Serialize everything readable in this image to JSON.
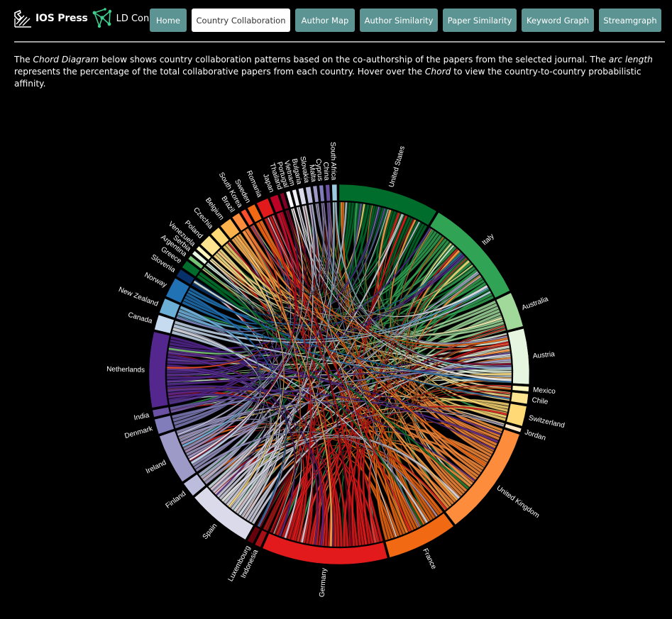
{
  "brand": {
    "ios_press": "IOS Press",
    "ld_connect": "LD Connect"
  },
  "nav": [
    {
      "label": "Home",
      "active": false,
      "width": 52
    },
    {
      "label": "Country Collaboration",
      "active": true,
      "width": 139
    },
    {
      "label": "Author Map",
      "active": false,
      "width": 84
    },
    {
      "label": "Author Similarity",
      "active": false,
      "width": 110
    },
    {
      "label": "Paper Similarity",
      "active": false,
      "width": 104
    },
    {
      "label": "Keyword Graph",
      "active": false,
      "width": 102
    },
    {
      "label": "Streamgraph",
      "active": false,
      "width": 88
    }
  ],
  "description": {
    "p1": "The ",
    "chord_diagram": "Chord Diagram",
    "p2": " below shows country collaboration patterns based on the co-authorship of the papers from the selected journal. The ",
    "arc_length": "arc length",
    "p3": " represents the percentage of the total collaborative papers from each country. Hover over the ",
    "chord": "Chord",
    "p4": " to view the country-to-country probabilistic affinity."
  },
  "chart_data": {
    "type": "chord",
    "unit": "percentage of total collaborative papers (estimated from arc length)",
    "countries": [
      {
        "name": "United States",
        "value": 10.0,
        "color": "#006d2c"
      },
      {
        "name": "Italy",
        "value": 10.5,
        "color": "#31a354"
      },
      {
        "name": "Australia",
        "value": 3.5,
        "color": "#a1d99b"
      },
      {
        "name": "Austria",
        "value": 5.5,
        "color": "#e5f5e0"
      },
      {
        "name": "Mexico",
        "value": 0.5,
        "color": "#fff7bc"
      },
      {
        "name": "Chile",
        "value": 1.0,
        "color": "#fee391"
      },
      {
        "name": "Switzerland",
        "value": 2.0,
        "color": "#fed976"
      },
      {
        "name": "Jordan",
        "value": 0.4,
        "color": "#fee8c8"
      },
      {
        "name": "United Kingdom",
        "value": 11.0,
        "color": "#fd8d3c"
      },
      {
        "name": "France",
        "value": 7.0,
        "color": "#f16913"
      },
      {
        "name": "Germany",
        "value": 12.5,
        "color": "#e31a1c"
      },
      {
        "name": "Indonesia",
        "value": 0.6,
        "color": "#a50f15"
      },
      {
        "name": "Luxembourg",
        "value": 0.6,
        "color": "#67000d"
      },
      {
        "name": "Spain",
        "value": 6.5,
        "color": "#dadaeb"
      },
      {
        "name": "Finland",
        "value": 1.5,
        "color": "#bcbddc"
      },
      {
        "name": "Ireland",
        "value": 5.0,
        "color": "#9e9ac8"
      },
      {
        "name": "Denmark",
        "value": 1.5,
        "color": "#807dba"
      },
      {
        "name": "India",
        "value": 0.7,
        "color": "#6a51a3"
      },
      {
        "name": "Netherlands",
        "value": 7.5,
        "color": "#54278f"
      },
      {
        "name": "Canada",
        "value": 1.5,
        "color": "#c6dbef"
      },
      {
        "name": "New Zealand",
        "value": 1.5,
        "color": "#6baed6"
      },
      {
        "name": "Norway",
        "value": 2.0,
        "color": "#2171b5"
      },
      {
        "name": "Slovenia",
        "value": 0.8,
        "color": "#08306b"
      },
      {
        "name": "Greece",
        "value": 0.8,
        "color": "#006d2c"
      },
      {
        "name": "Argentina",
        "value": 0.4,
        "color": "#74c476"
      },
      {
        "name": "Serbia",
        "value": 0.4,
        "color": "#e5f5e0"
      },
      {
        "name": "Venezuela",
        "value": 0.4,
        "color": "#fff7bc"
      },
      {
        "name": "Poland",
        "value": 1.2,
        "color": "#fee391"
      },
      {
        "name": "Czechia",
        "value": 1.0,
        "color": "#fed976"
      },
      {
        "name": "Belgium",
        "value": 1.2,
        "color": "#feb24c"
      },
      {
        "name": "Brazil",
        "value": 0.8,
        "color": "#fd8d3c"
      },
      {
        "name": "South Korea",
        "value": 0.5,
        "color": "#fc4e2a"
      },
      {
        "name": "Sweden",
        "value": 0.8,
        "color": "#f16913"
      },
      {
        "name": "Romania",
        "value": 1.2,
        "color": "#e31a1c"
      },
      {
        "name": "Japan",
        "value": 0.8,
        "color": "#bd0026"
      },
      {
        "name": "Thailand",
        "value": 0.4,
        "color": "#800026"
      },
      {
        "name": "Portugal",
        "value": 0.4,
        "color": "#fcfbfd"
      },
      {
        "name": "Vietnam",
        "value": 0.4,
        "color": "#efedf5"
      },
      {
        "name": "Bulgaria",
        "value": 0.5,
        "color": "#dadaeb"
      },
      {
        "name": "Slovakia",
        "value": 0.5,
        "color": "#bcbddc"
      },
      {
        "name": "Malta",
        "value": 0.4,
        "color": "#9e9ac8"
      },
      {
        "name": "Cyprus",
        "value": 0.4,
        "color": "#807dba"
      },
      {
        "name": "China",
        "value": 0.4,
        "color": "#6a51a3"
      },
      {
        "name": "South Africa",
        "value": 0.5,
        "color": "#9ecae1"
      }
    ]
  }
}
